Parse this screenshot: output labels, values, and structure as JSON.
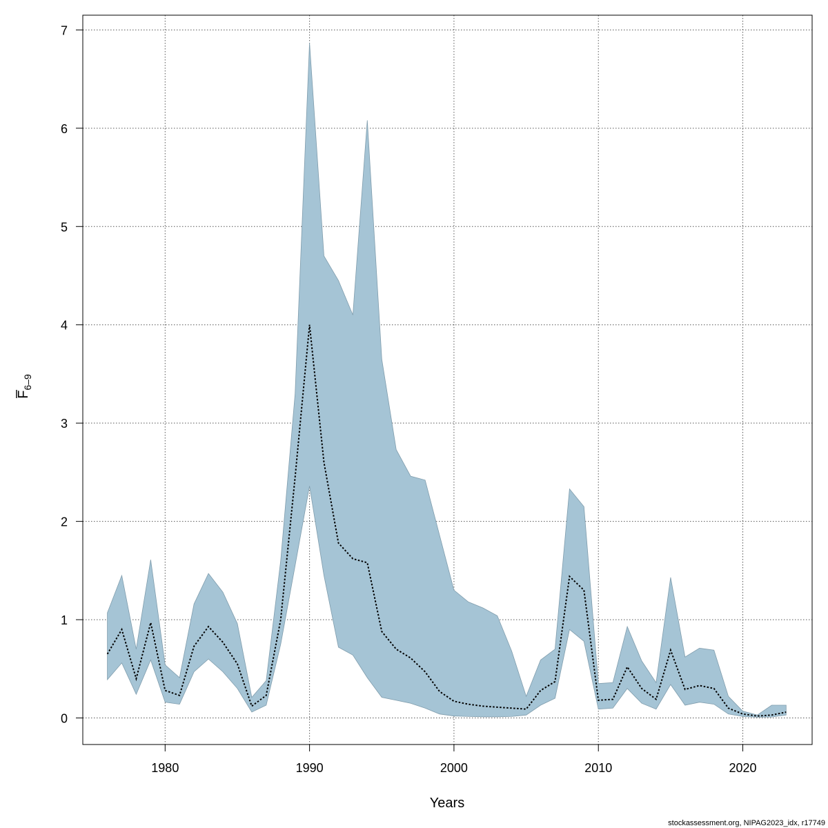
{
  "chart_data": {
    "type": "area",
    "xlabel": "Years",
    "ylabel_main": "F",
    "ylabel_sub": "6–9",
    "credit": "stockassessment.org, NIPAG2023_idx, r17749",
    "xlim": [
      1974.3,
      2024.8
    ],
    "ylim": [
      -0.27,
      7.15
    ],
    "x_ticks": [
      1980,
      1990,
      2000,
      2010,
      2020
    ],
    "y_ticks": [
      0,
      1,
      2,
      3,
      4,
      5,
      6,
      7
    ],
    "grid": true,
    "colors": {
      "band": "#a5c4d5",
      "band_edge": "#7f9cac",
      "line": "#000000",
      "grid": "#555555"
    },
    "x": [
      1976,
      1977,
      1978,
      1979,
      1980,
      1981,
      1982,
      1983,
      1984,
      1985,
      1986,
      1987,
      1988,
      1989,
      1990,
      1991,
      1992,
      1993,
      1994,
      1995,
      1996,
      1997,
      1998,
      1999,
      2000,
      2001,
      2002,
      2003,
      2004,
      2005,
      2006,
      2007,
      2008,
      2009,
      2010,
      2011,
      2012,
      2013,
      2014,
      2015,
      2016,
      2017,
      2018,
      2019,
      2020,
      2021,
      2022,
      2023
    ],
    "series": [
      {
        "role": "estimate",
        "values": [
          0.65,
          0.9,
          0.4,
          0.97,
          0.28,
          0.23,
          0.73,
          0.93,
          0.77,
          0.55,
          0.12,
          0.23,
          1.0,
          2.45,
          4.0,
          2.6,
          1.78,
          1.62,
          1.58,
          0.88,
          0.7,
          0.61,
          0.47,
          0.27,
          0.17,
          0.14,
          0.12,
          0.11,
          0.1,
          0.09,
          0.28,
          0.37,
          1.44,
          1.3,
          0.18,
          0.19,
          0.52,
          0.3,
          0.19,
          0.69,
          0.29,
          0.33,
          0.3,
          0.1,
          0.04,
          0.02,
          0.03,
          0.06
        ]
      },
      {
        "role": "upper",
        "values": [
          1.07,
          1.45,
          0.7,
          1.61,
          0.54,
          0.41,
          1.16,
          1.47,
          1.28,
          0.96,
          0.21,
          0.38,
          1.6,
          3.3,
          6.87,
          4.7,
          4.45,
          4.1,
          6.08,
          3.65,
          2.73,
          2.46,
          2.42,
          1.86,
          1.3,
          1.18,
          1.12,
          1.04,
          0.68,
          0.22,
          0.59,
          0.7,
          2.33,
          2.15,
          0.35,
          0.36,
          0.93,
          0.58,
          0.36,
          1.43,
          0.62,
          0.71,
          0.69,
          0.22,
          0.07,
          0.03,
          0.13,
          0.13
        ]
      },
      {
        "role": "lower",
        "values": [
          0.39,
          0.56,
          0.24,
          0.59,
          0.16,
          0.14,
          0.47,
          0.6,
          0.47,
          0.3,
          0.06,
          0.13,
          0.75,
          1.55,
          2.36,
          1.45,
          0.72,
          0.64,
          0.41,
          0.21,
          0.18,
          0.15,
          0.1,
          0.04,
          0.02,
          0.015,
          0.012,
          0.012,
          0.015,
          0.03,
          0.13,
          0.2,
          0.9,
          0.78,
          0.09,
          0.1,
          0.3,
          0.15,
          0.09,
          0.34,
          0.13,
          0.16,
          0.14,
          0.04,
          0.015,
          0.008,
          0.01,
          0.03
        ]
      }
    ]
  }
}
